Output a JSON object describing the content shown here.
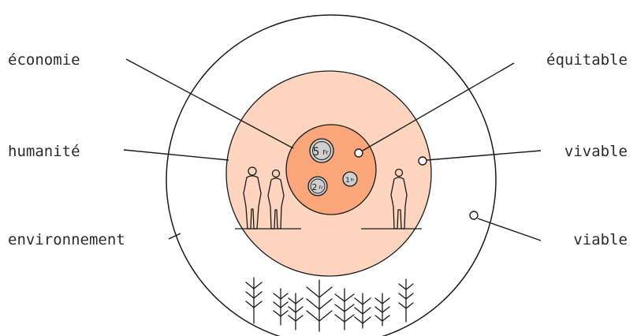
{
  "labels": {
    "economie": "économie",
    "humanite": "humanité",
    "environnement": "environnement",
    "equitable": "équitable",
    "vivable": "vivable",
    "viable": "viable"
  },
  "coins": {
    "five": "5",
    "two": "2",
    "one": "1",
    "unit": "Fr"
  },
  "colors": {
    "outer_circle": "#ffffff",
    "middle_circle": "#fdd5bf",
    "inner_circle": "#f9a67a",
    "coin_fill": "#cfcfcf",
    "stroke": "#1a1a1a"
  }
}
